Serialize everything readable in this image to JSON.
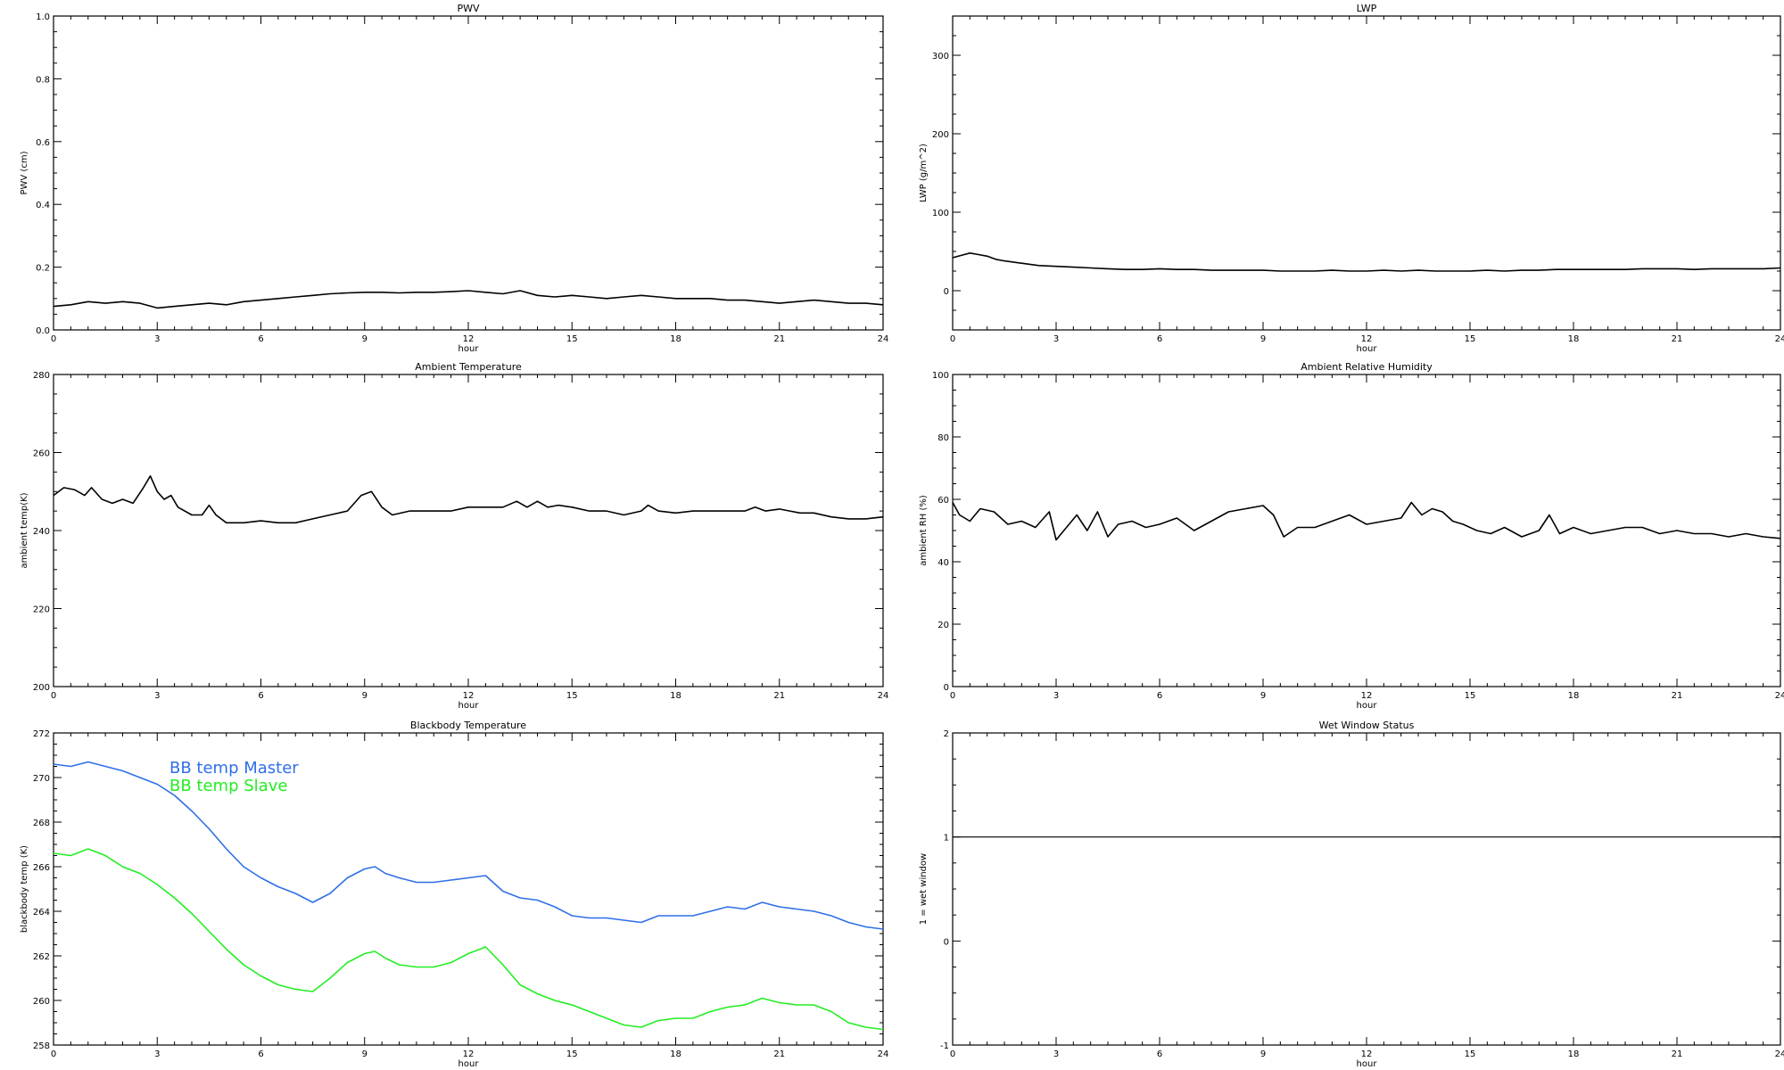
{
  "colors": {
    "foreground": "#000000",
    "background": "#ffffff",
    "bb_master": "#2f6fe8",
    "bb_slave": "#22ee22"
  },
  "chart_data": [
    {
      "id": "pwv",
      "type": "line",
      "title": "PWV",
      "xlabel": "hour",
      "ylabel": "PWV (cm)",
      "xlim": [
        0,
        24
      ],
      "ylim": [
        0.0,
        1.0
      ],
      "xticks": [
        0,
        3,
        6,
        9,
        12,
        15,
        18,
        21,
        24
      ],
      "yticks": [
        0.0,
        0.2,
        0.4,
        0.6,
        0.8,
        1.0
      ],
      "ytick_labels": [
        "0.0",
        "0.2",
        "0.4",
        "0.6",
        "0.8",
        "1.0"
      ],
      "grid": false,
      "series": [
        {
          "color": "#000000",
          "x": [
            0,
            0.5,
            1,
            1.5,
            2,
            2.5,
            3,
            3.5,
            4,
            4.5,
            5,
            5.5,
            6,
            6.5,
            7,
            7.5,
            8,
            8.5,
            9,
            9.5,
            10,
            10.5,
            11,
            11.5,
            12,
            12.5,
            13,
            13.5,
            14,
            14.5,
            15,
            15.5,
            16,
            16.5,
            17,
            17.5,
            18,
            18.5,
            19,
            19.5,
            20,
            20.5,
            21,
            21.5,
            22,
            22.5,
            23,
            23.5,
            24
          ],
          "y": [
            0.075,
            0.08,
            0.09,
            0.085,
            0.09,
            0.085,
            0.07,
            0.075,
            0.08,
            0.085,
            0.08,
            0.09,
            0.095,
            0.1,
            0.105,
            0.11,
            0.115,
            0.118,
            0.12,
            0.12,
            0.118,
            0.12,
            0.12,
            0.122,
            0.125,
            0.12,
            0.115,
            0.125,
            0.11,
            0.105,
            0.11,
            0.105,
            0.1,
            0.105,
            0.11,
            0.105,
            0.1,
            0.1,
            0.1,
            0.095,
            0.095,
            0.09,
            0.085,
            0.09,
            0.095,
            0.09,
            0.085,
            0.085,
            0.08
          ]
        }
      ]
    },
    {
      "id": "lwp",
      "type": "line",
      "title": "LWP",
      "xlabel": "hour",
      "ylabel": "LWP (g/m^2)",
      "xlim": [
        0,
        24
      ],
      "ylim": [
        -50,
        350
      ],
      "xticks": [
        0,
        3,
        6,
        9,
        12,
        15,
        18,
        21,
        24
      ],
      "yticks": [
        0,
        100,
        200,
        300
      ],
      "ytick_labels": [
        "0",
        "100",
        "200",
        "300"
      ],
      "grid": false,
      "series": [
        {
          "color": "#000000",
          "x": [
            0,
            0.25,
            0.5,
            0.75,
            1,
            1.25,
            1.5,
            2,
            2.5,
            3,
            3.5,
            4,
            4.5,
            5,
            5.5,
            6,
            6.5,
            7,
            7.5,
            8,
            8.5,
            9,
            9.5,
            10,
            10.5,
            11,
            11.5,
            12,
            12.5,
            13,
            13.5,
            14,
            14.5,
            15,
            15.5,
            16,
            16.5,
            17,
            17.5,
            18,
            18.5,
            19,
            19.5,
            20,
            20.5,
            21,
            21.5,
            22,
            22.5,
            23,
            23.5,
            24
          ],
          "y": [
            42,
            45,
            48,
            46,
            44,
            40,
            38,
            35,
            32,
            31,
            30,
            29,
            28,
            27,
            27,
            28,
            27,
            27,
            26,
            26,
            26,
            26,
            25,
            25,
            25,
            26,
            25,
            25,
            26,
            25,
            26,
            25,
            25,
            25,
            26,
            25,
            26,
            26,
            27,
            27,
            27,
            27,
            27,
            28,
            28,
            28,
            27,
            28,
            28,
            28,
            28,
            29
          ]
        }
      ]
    },
    {
      "id": "ambient_temp",
      "type": "line",
      "title": "Ambient Temperature",
      "xlabel": "hour",
      "ylabel": "ambient temp(K)",
      "xlim": [
        0,
        24
      ],
      "ylim": [
        200,
        280
      ],
      "xticks": [
        0,
        3,
        6,
        9,
        12,
        15,
        18,
        21,
        24
      ],
      "yticks": [
        200,
        220,
        240,
        260,
        280
      ],
      "ytick_labels": [
        "200",
        "220",
        "240",
        "260",
        "280"
      ],
      "grid": false,
      "series": [
        {
          "color": "#000000",
          "x": [
            0,
            0.3,
            0.6,
            0.9,
            1.1,
            1.4,
            1.7,
            2.0,
            2.3,
            2.6,
            2.8,
            3.0,
            3.2,
            3.4,
            3.6,
            4.0,
            4.3,
            4.5,
            4.7,
            5.0,
            5.5,
            6.0,
            6.5,
            7.0,
            7.5,
            8.0,
            8.5,
            8.9,
            9.2,
            9.5,
            9.8,
            10.3,
            11,
            11.5,
            12,
            12.5,
            13,
            13.4,
            13.7,
            14,
            14.3,
            14.6,
            15,
            15.5,
            16,
            16.5,
            17,
            17.2,
            17.5,
            18,
            18.5,
            19,
            19.5,
            20,
            20.3,
            20.6,
            21,
            21.3,
            21.6,
            22,
            22.5,
            23,
            23.5,
            24
          ],
          "y": [
            249,
            251,
            250.5,
            249,
            251,
            248,
            247,
            248,
            247,
            251,
            254,
            250,
            248,
            249,
            246,
            244,
            244,
            246.5,
            244,
            242,
            242,
            242.5,
            242,
            242,
            243,
            244,
            245,
            249,
            250,
            246,
            244,
            245,
            245,
            245,
            246,
            246,
            246,
            247.5,
            246,
            247.5,
            246,
            246.5,
            246,
            245,
            245,
            244,
            245,
            246.5,
            245,
            244.5,
            245,
            245,
            245,
            245,
            246,
            245,
            245.5,
            245,
            244.5,
            244.5,
            243.5,
            243,
            243,
            243.5
          ]
        }
      ]
    },
    {
      "id": "ambient_rh",
      "type": "line",
      "title": "Ambient Relative Humidity",
      "xlabel": "hour",
      "ylabel": "ambient RH (%)",
      "xlim": [
        0,
        24
      ],
      "ylim": [
        0,
        100
      ],
      "xticks": [
        0,
        3,
        6,
        9,
        12,
        15,
        18,
        21,
        24
      ],
      "yticks": [
        0,
        20,
        40,
        60,
        80,
        100
      ],
      "ytick_labels": [
        "0",
        "20",
        "40",
        "60",
        "80",
        "100"
      ],
      "grid": false,
      "series": [
        {
          "color": "#000000",
          "x": [
            0,
            0.2,
            0.5,
            0.8,
            1.2,
            1.6,
            2,
            2.4,
            2.8,
            3.0,
            3.3,
            3.6,
            3.9,
            4.2,
            4.5,
            4.8,
            5.2,
            5.6,
            6,
            6.5,
            7,
            7.5,
            8,
            8.5,
            9,
            9.3,
            9.6,
            10,
            10.5,
            11,
            11.5,
            12,
            12.5,
            13,
            13.3,
            13.6,
            13.9,
            14.2,
            14.5,
            14.8,
            15.2,
            15.6,
            16,
            16.5,
            17,
            17.3,
            17.6,
            18,
            18.5,
            19,
            19.5,
            20,
            20.5,
            21,
            21.5,
            22,
            22.5,
            23,
            23.5,
            24
          ],
          "y": [
            59,
            55,
            53,
            57,
            56,
            52,
            53,
            51,
            56,
            47,
            51,
            55,
            50,
            56,
            48,
            52,
            53,
            51,
            52,
            54,
            50,
            53,
            56,
            57,
            58,
            55,
            48,
            51,
            51,
            53,
            55,
            52,
            53,
            54,
            59,
            55,
            57,
            56,
            53,
            52,
            50,
            49,
            51,
            48,
            50,
            55,
            49,
            51,
            49,
            50,
            51,
            51,
            49,
            50,
            49,
            49,
            48,
            49,
            48,
            47.5
          ]
        }
      ]
    },
    {
      "id": "blackbody_temp",
      "type": "line",
      "title": "Blackbody Temperature",
      "xlabel": "hour",
      "ylabel": "blackbody temp (K)",
      "xlim": [
        0,
        24
      ],
      "ylim": [
        258,
        272
      ],
      "xticks": [
        0,
        3,
        6,
        9,
        12,
        15,
        18,
        21,
        24
      ],
      "yticks": [
        258,
        260,
        262,
        264,
        266,
        268,
        270,
        272
      ],
      "ytick_labels": [
        "258",
        "260",
        "262",
        "264",
        "266",
        "268",
        "270",
        "272"
      ],
      "grid": false,
      "legend": [
        "BB temp Master",
        "BB temp Slave"
      ],
      "series": [
        {
          "name": "BB temp Master",
          "color": "#2f6fe8",
          "x": [
            0,
            0.5,
            1,
            1.5,
            2,
            2.5,
            3,
            3.5,
            4,
            4.5,
            5,
            5.5,
            6,
            6.5,
            7,
            7.5,
            8,
            8.5,
            9,
            9.3,
            9.6,
            10,
            10.5,
            11,
            11.5,
            12,
            12.5,
            13,
            13.5,
            14,
            14.5,
            15,
            15.5,
            16,
            16.5,
            17,
            17.5,
            18,
            18.5,
            19,
            19.5,
            20,
            20.5,
            21,
            21.5,
            22,
            22.5,
            23,
            23.5,
            24
          ],
          "y": [
            270.6,
            270.5,
            270.7,
            270.5,
            270.3,
            270.0,
            269.7,
            269.2,
            268.5,
            267.7,
            266.8,
            266.0,
            265.5,
            265.1,
            264.8,
            264.4,
            264.8,
            265.5,
            265.9,
            266.0,
            265.7,
            265.5,
            265.3,
            265.3,
            265.4,
            265.5,
            265.6,
            264.9,
            264.6,
            264.5,
            264.2,
            263.8,
            263.7,
            263.7,
            263.6,
            263.5,
            263.8,
            263.8,
            263.8,
            264.0,
            264.2,
            264.1,
            264.4,
            264.2,
            264.1,
            264.0,
            263.8,
            263.5,
            263.3,
            263.2
          ]
        },
        {
          "name": "BB temp Slave",
          "color": "#22ee22",
          "x": [
            0,
            0.5,
            1,
            1.5,
            2,
            2.5,
            3,
            3.5,
            4,
            4.5,
            5,
            5.5,
            6,
            6.5,
            7,
            7.5,
            8,
            8.5,
            9,
            9.3,
            9.6,
            10,
            10.5,
            11,
            11.5,
            12,
            12.5,
            13,
            13.5,
            14,
            14.5,
            15,
            15.5,
            16,
            16.5,
            17,
            17.5,
            18,
            18.5,
            19,
            19.5,
            20,
            20.5,
            21,
            21.5,
            22,
            22.5,
            23,
            23.5,
            24
          ],
          "y": [
            266.6,
            266.5,
            266.8,
            266.5,
            266.0,
            265.7,
            265.2,
            264.6,
            263.9,
            263.1,
            262.3,
            261.6,
            261.1,
            260.7,
            260.5,
            260.4,
            261.0,
            261.7,
            262.1,
            262.2,
            261.9,
            261.6,
            261.5,
            261.5,
            261.7,
            262.1,
            262.4,
            261.6,
            260.7,
            260.3,
            260.0,
            259.8,
            259.5,
            259.2,
            258.9,
            258.8,
            259.1,
            259.2,
            259.2,
            259.5,
            259.7,
            259.8,
            260.1,
            259.9,
            259.8,
            259.8,
            259.5,
            259.0,
            258.8,
            258.7
          ]
        }
      ]
    },
    {
      "id": "wet_window",
      "type": "line",
      "title": "Wet Window Status",
      "xlabel": "hour",
      "ylabel": "1 = wet window",
      "xlim": [
        0,
        24
      ],
      "ylim": [
        -1,
        2
      ],
      "xticks": [
        0,
        3,
        6,
        9,
        12,
        15,
        18,
        21,
        24
      ],
      "yticks": [
        -1,
        0,
        1,
        2
      ],
      "ytick_labels": [
        "-1",
        "0",
        "1",
        "2"
      ],
      "grid": false,
      "series": [
        {
          "color": "#000000",
          "x": [
            0,
            24
          ],
          "y": [
            1,
            1
          ]
        }
      ]
    }
  ]
}
